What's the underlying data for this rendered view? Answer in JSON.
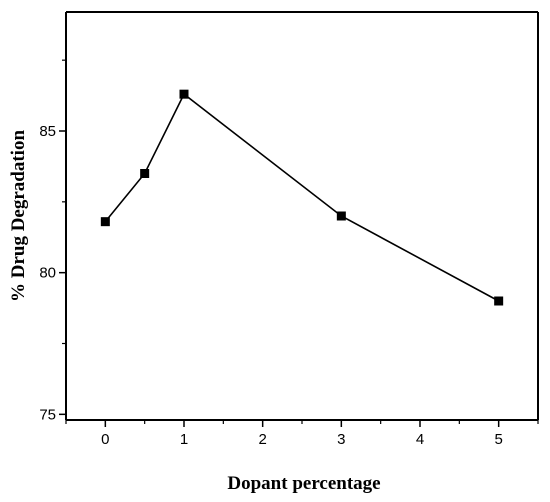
{
  "chart_data": {
    "type": "line",
    "title": "",
    "xlabel": "Dopant percentage",
    "ylabel": "% Drug Degradation",
    "x": [
      0,
      0.5,
      1,
      3,
      5
    ],
    "series": [
      {
        "name": "",
        "values": [
          81.8,
          83.5,
          86.3,
          82.0,
          79.0
        ]
      }
    ],
    "xlim": [
      -0.5,
      5.5
    ],
    "ylim": [
      74.8,
      89.2
    ],
    "x_major_ticks": [
      0,
      1,
      2,
      3,
      4,
      5
    ],
    "x_tick_labels": [
      "0",
      "1",
      "2",
      "3",
      "4",
      "5"
    ],
    "y_major_ticks": [
      75,
      80,
      85
    ],
    "y_tick_labels": [
      "75",
      "80",
      "85"
    ],
    "marker": "filled-square",
    "grid": false,
    "legend": "none",
    "colors": {
      "line": "#000000",
      "marker": "#000000",
      "axes": "#000000"
    }
  }
}
